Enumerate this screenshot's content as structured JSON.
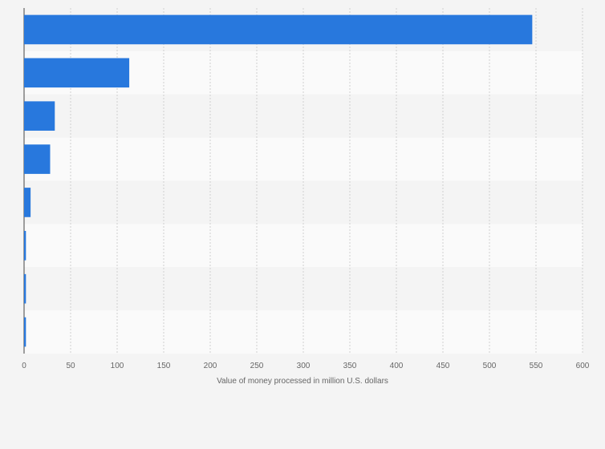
{
  "chart_data": {
    "type": "bar",
    "orientation": "horizontal",
    "categories": [
      "",
      "",
      "",
      "",
      "",
      "",
      "",
      ""
    ],
    "values": [
      546,
      113,
      33,
      28,
      7,
      2,
      2,
      2
    ],
    "title": "",
    "xlabel": "Value of money processed in million U.S. dollars",
    "ylabel": "",
    "xlim": [
      0,
      600
    ],
    "xticks": [
      "0",
      "50",
      "100",
      "150",
      "200",
      "250",
      "300",
      "350",
      "400",
      "450",
      "500",
      "550",
      "600"
    ],
    "grid": "vertical-dashed",
    "colors": {
      "bar": "#2878dd",
      "band_light": "#fafafa",
      "band_dark": "#f4f4f4"
    }
  }
}
